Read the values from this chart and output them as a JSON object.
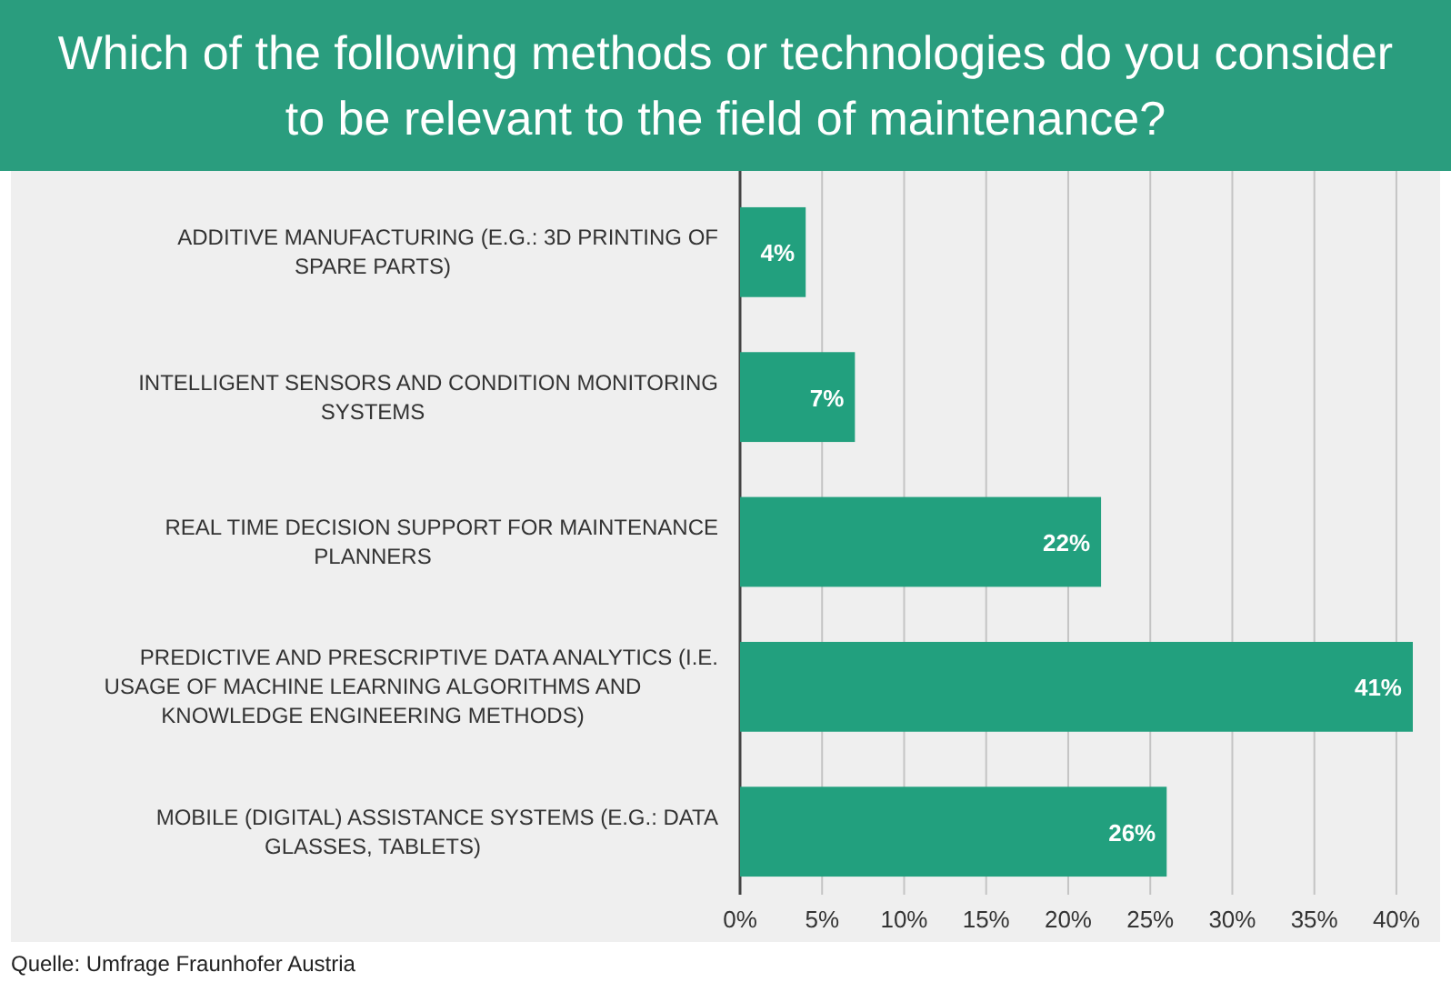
{
  "chart_data": {
    "type": "bar",
    "orientation": "horizontal",
    "title": "Which of the following methods or technologies do you consider to be relevant to the field of maintenance?",
    "categories": [
      "ADDITIVE MANUFACTURING (E.G.: 3D PRINTING OF SPARE PARTS)",
      "INTELLIGENT SENSORS AND CONDITION MONITORING SYSTEMS",
      "REAL TIME DECISION SUPPORT FOR MAINTENANCE PLANNERS",
      "PREDICTIVE AND PRESCRIPTIVE DATA ANALYTICS (I.E. USAGE OF MACHINE LEARNING ALGORITHMS AND KNOWLEDGE ENGINEERING METHODS)",
      "MOBILE (DIGITAL) ASSISTANCE SYSTEMS (E.G.: DATA GLASSES, TABLETS)"
    ],
    "values": [
      4,
      7,
      22,
      41,
      26
    ],
    "value_labels": [
      "4%",
      "7%",
      "22%",
      "41%",
      "26%"
    ],
    "color": "#22a07e",
    "xlim": [
      0,
      41
    ],
    "xticks": [
      {
        "value": 0,
        "label": "0%"
      },
      {
        "value": 5,
        "label": "5%"
      },
      {
        "value": 10,
        "label": "10%"
      },
      {
        "value": 15,
        "label": "15%"
      },
      {
        "value": 20,
        "label": "20%"
      },
      {
        "value": 25,
        "label": "25%"
      },
      {
        "value": 30,
        "label": "30%"
      },
      {
        "value": 35,
        "label": "35%"
      },
      {
        "value": 40,
        "label": "40%"
      }
    ],
    "grid": "x",
    "annotations": [
      "Quelle: Umfrage Fraunhofer Austria"
    ]
  }
}
